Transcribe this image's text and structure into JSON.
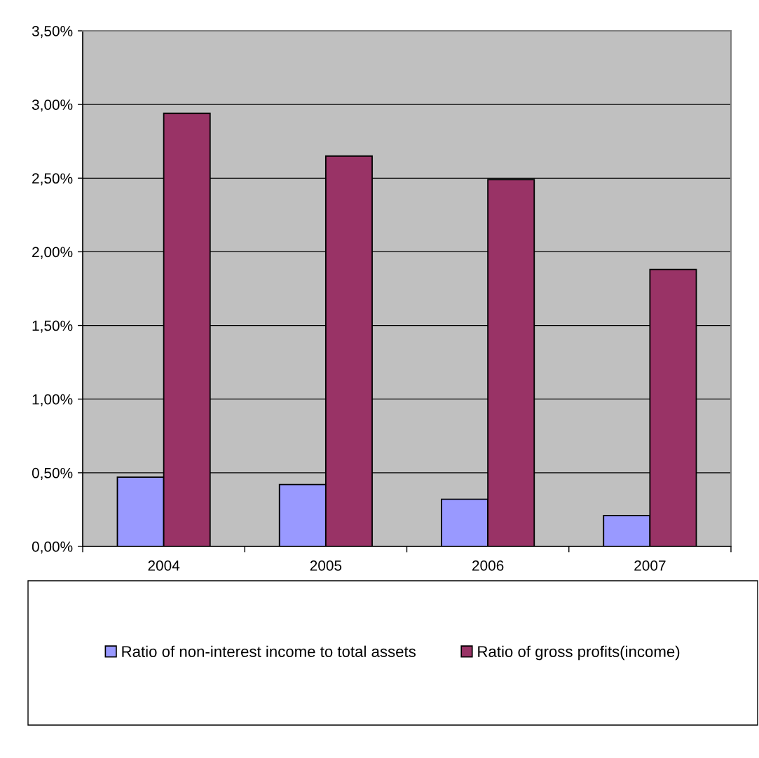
{
  "chart_data": {
    "type": "bar",
    "categories": [
      "2004",
      "2005",
      "2006",
      "2007"
    ],
    "series": [
      {
        "name": "Ratio of non-interest income to total assets",
        "color": "#9999ff",
        "values": [
          0.47,
          0.42,
          0.32,
          0.21
        ]
      },
      {
        "name": "Ratio of gross profits(income)",
        "color": "#993366",
        "values": [
          2.94,
          2.65,
          2.49,
          1.88
        ]
      }
    ],
    "ylim": [
      0,
      3.5
    ],
    "yticks": [
      {
        "value": 0,
        "label": "0,00%"
      },
      {
        "value": 0.5,
        "label": "0,50%"
      },
      {
        "value": 1,
        "label": "1,00%"
      },
      {
        "value": 1.5,
        "label": "1,50%"
      },
      {
        "value": 2,
        "label": "2,00%"
      },
      {
        "value": 2.5,
        "label": "2,50%"
      },
      {
        "value": 3,
        "label": "3,00%"
      },
      {
        "value": 3.5,
        "label": "3,50%"
      }
    ],
    "grid": "y",
    "legend": "bottom"
  }
}
